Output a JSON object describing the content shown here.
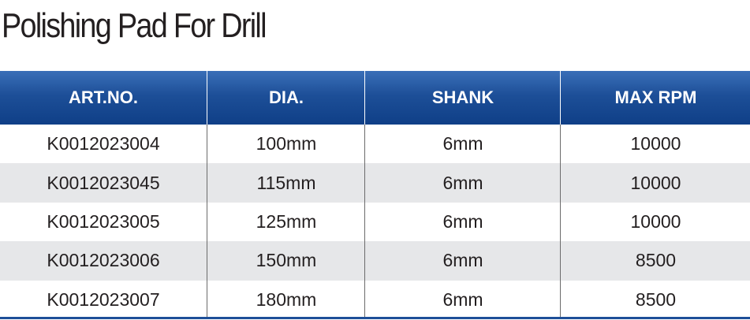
{
  "title": "Polishing Pad For Drill",
  "table": {
    "header": [
      "ART.NO.",
      "DIA.",
      "SHANK",
      "MAX RPM"
    ],
    "rows": [
      [
        "K0012023004",
        "100mm",
        "6mm",
        "10000"
      ],
      [
        "K0012023045",
        "115mm",
        "6mm",
        "10000"
      ],
      [
        "K0012023005",
        "125mm",
        "6mm",
        "10000"
      ],
      [
        "K0012023006",
        "150mm",
        "6mm",
        "8500"
      ],
      [
        "K0012023007",
        "180mm",
        "6mm",
        "8500"
      ]
    ]
  }
}
